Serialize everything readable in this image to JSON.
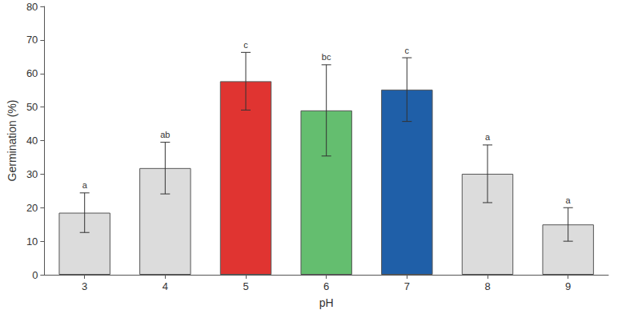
{
  "chart_data": {
    "type": "bar",
    "x_label": "pH",
    "y_label": "Germination (%)",
    "categories": [
      "3",
      "4",
      "5",
      "6",
      "7",
      "8",
      "9"
    ],
    "values": [
      18.5,
      31.8,
      57.7,
      49.0,
      55.2,
      30.1,
      15.0
    ],
    "errors": [
      5.9,
      7.7,
      8.6,
      13.6,
      9.5,
      8.6,
      5.0
    ],
    "annotations": [
      "a",
      "ab",
      "c",
      "bc",
      "c",
      "a",
      "a"
    ],
    "colors": [
      "#dcdcdc",
      "#dcdcdc",
      "#e03431",
      "#64be6f",
      "#1f5fa8",
      "#dcdcdc",
      "#dcdcdc"
    ],
    "ylim": [
      0,
      80
    ],
    "yticks": [
      0,
      10,
      20,
      30,
      40,
      50,
      60,
      70,
      80
    ],
    "grid": false
  }
}
